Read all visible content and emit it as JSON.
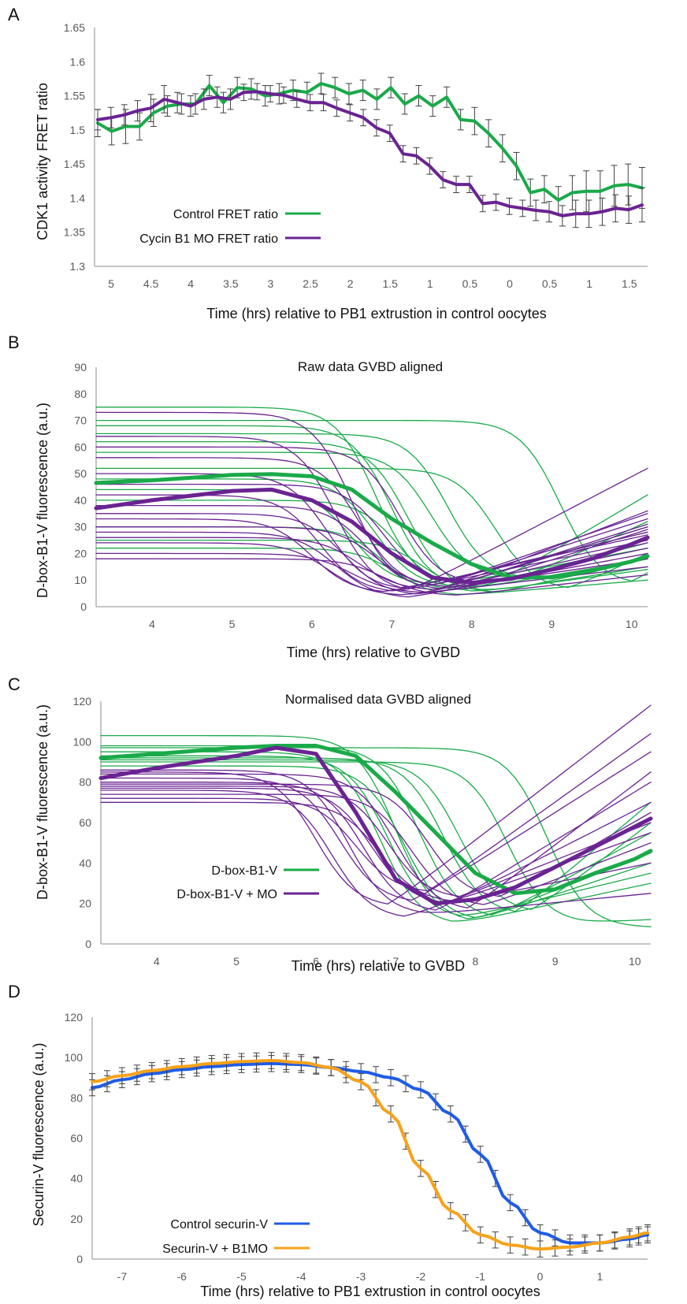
{
  "colors": {
    "green": "#1aaa49",
    "purple": "#6a2392",
    "blue": "#1f5ce6",
    "orange": "#f7a21b",
    "err": "#404040",
    "axis": "#b3b3b3"
  },
  "chart_data": [
    {
      "panel": "A",
      "type": "line",
      "title": "",
      "ylabel": "CDK1 activity  FRET ratio",
      "xlabel": "Time (hrs) relative to PB1 extrustion in control oocytes",
      "ylim": [
        1.3,
        1.65
      ],
      "yticks": [
        "1.3",
        "1.35",
        "1.4",
        "1.45",
        "1.5",
        "1.55",
        "1.6",
        "1.65"
      ],
      "xticks": [
        "5",
        "4.5",
        "4",
        "3.5",
        "3",
        "2.5",
        "2",
        "1.5",
        "1",
        "0.5",
        "0",
        "0.5",
        "1",
        "1.5"
      ],
      "series": [
        {
          "name": "Control FRET ratio",
          "color": "green",
          "values": [
            1.51,
            1.498,
            1.505,
            1.505,
            1.525,
            1.535,
            1.538,
            1.538,
            1.565,
            1.54,
            1.562,
            1.56,
            1.55,
            1.553,
            1.558,
            1.555,
            1.568,
            1.562,
            1.553,
            1.558,
            1.545,
            1.562,
            1.538,
            1.55,
            1.535,
            1.548,
            1.515,
            1.513,
            1.495,
            1.473,
            1.447,
            1.408,
            1.413,
            1.397,
            1.408,
            1.41,
            1.41,
            1.418,
            1.42,
            1.415
          ],
          "err": [
            0.02,
            0.02,
            0.025,
            0.02,
            0.02,
            0.015,
            0.015,
            0.015,
            0.015,
            0.015,
            0.015,
            0.015,
            0.015,
            0.015,
            0.015,
            0.015,
            0.015,
            0.015,
            0.015,
            0.015,
            0.015,
            0.015,
            0.015,
            0.015,
            0.015,
            0.015,
            0.015,
            0.02,
            0.02,
            0.02,
            0.02,
            0.02,
            0.02,
            0.02,
            0.025,
            0.03,
            0.03,
            0.03,
            0.03,
            0.03
          ]
        },
        {
          "name": "Cycin B1 MO FRET ratio",
          "color": "purple",
          "values": [
            1.515,
            1.518,
            1.522,
            1.528,
            1.532,
            1.545,
            1.54,
            1.535,
            1.545,
            1.548,
            1.545,
            1.555,
            1.556,
            1.553,
            1.551,
            1.545,
            1.54,
            1.54,
            1.532,
            1.525,
            1.518,
            1.503,
            1.495,
            1.465,
            1.462,
            1.447,
            1.427,
            1.42,
            1.42,
            1.392,
            1.394,
            1.388,
            1.385,
            1.382,
            1.38,
            1.374,
            1.377,
            1.377,
            1.38,
            1.385,
            1.383,
            1.39
          ],
          "err": [
            0.015,
            0.015,
            0.015,
            0.015,
            0.02,
            0.02,
            0.015,
            0.015,
            0.015,
            0.015,
            0.015,
            0.012,
            0.012,
            0.012,
            0.012,
            0.012,
            0.012,
            0.012,
            0.012,
            0.012,
            0.012,
            0.012,
            0.012,
            0.012,
            0.012,
            0.012,
            0.012,
            0.012,
            0.012,
            0.012,
            0.012,
            0.012,
            0.012,
            0.015,
            0.015,
            0.015,
            0.02,
            0.02,
            0.02,
            0.02,
            0.02,
            0.025
          ]
        }
      ],
      "legend": "bottom-left"
    },
    {
      "panel": "B",
      "type": "line",
      "title": "Raw data GVBD aligned",
      "ylabel": "D-box-B1-V fluorescence (a.u.)",
      "xlabel": "Time (hrs) relative to GVBD",
      "ylim": [
        0,
        90
      ],
      "yticks": [
        "0",
        "10",
        "20",
        "30",
        "40",
        "50",
        "60",
        "70",
        "80",
        "90"
      ],
      "xlim": [
        3.3,
        10.2
      ],
      "xticks": [
        "4",
        "5",
        "6",
        "7",
        "8",
        "9",
        "10"
      ],
      "thin_series": [
        {
          "color": "green",
          "start": 75,
          "t_drop": 6.8,
          "floor": 8,
          "end": 22
        },
        {
          "color": "green",
          "start": 68,
          "t_drop": 7.0,
          "floor": 6,
          "end": 18
        },
        {
          "color": "green",
          "start": 62,
          "t_drop": 7.2,
          "floor": 5,
          "end": 15
        },
        {
          "color": "green",
          "start": 58,
          "t_drop": 7.5,
          "floor": 10,
          "end": 42
        },
        {
          "color": "green",
          "start": 52,
          "t_drop": 8.3,
          "floor": 6,
          "end": 20
        },
        {
          "color": "green",
          "start": 48,
          "t_drop": 6.8,
          "floor": 7,
          "end": 30
        },
        {
          "color": "green",
          "start": 44,
          "t_drop": 6.5,
          "floor": 8,
          "end": 28
        },
        {
          "color": "green",
          "start": 40,
          "t_drop": 7.1,
          "floor": 5,
          "end": 14
        },
        {
          "color": "green",
          "start": 30,
          "t_drop": 6.9,
          "floor": 4,
          "end": 10
        },
        {
          "color": "green",
          "start": 25,
          "t_drop": 7.4,
          "floor": 5,
          "end": 18
        },
        {
          "color": "green",
          "start": 22,
          "t_drop": 7.0,
          "floor": 6,
          "end": 24
        },
        {
          "color": "green",
          "start": 70,
          "t_drop": 9.1,
          "floor": 8,
          "end": 12
        },
        {
          "color": "green",
          "start": 65,
          "t_drop": 7.7,
          "floor": 10,
          "end": 32
        },
        {
          "color": "purple",
          "start": 73,
          "t_drop": 6.5,
          "floor": 6,
          "end": 35
        },
        {
          "color": "purple",
          "start": 64,
          "t_drop": 6.3,
          "floor": 5,
          "end": 52
        },
        {
          "color": "purple",
          "start": 56,
          "t_drop": 6.6,
          "floor": 7,
          "end": 33
        },
        {
          "color": "purple",
          "start": 50,
          "t_drop": 6.2,
          "floor": 6,
          "end": 28
        },
        {
          "color": "purple",
          "start": 46,
          "t_drop": 6.9,
          "floor": 8,
          "end": 30
        },
        {
          "color": "purple",
          "start": 42,
          "t_drop": 6.1,
          "floor": 5,
          "end": 25
        },
        {
          "color": "purple",
          "start": 38,
          "t_drop": 6.7,
          "floor": 6,
          "end": 36
        },
        {
          "color": "purple",
          "start": 35,
          "t_drop": 6.4,
          "floor": 4,
          "end": 20
        },
        {
          "color": "purple",
          "start": 33,
          "t_drop": 6.0,
          "floor": 5,
          "end": 27
        },
        {
          "color": "purple",
          "start": 30,
          "t_drop": 6.8,
          "floor": 7,
          "end": 31
        },
        {
          "color": "purple",
          "start": 28,
          "t_drop": 6.3,
          "floor": 3,
          "end": 22
        },
        {
          "color": "purple",
          "start": 26,
          "t_drop": 6.6,
          "floor": 6,
          "end": 18
        },
        {
          "color": "purple",
          "start": 24,
          "t_drop": 6.2,
          "floor": 4,
          "end": 15
        },
        {
          "color": "purple",
          "start": 20,
          "t_drop": 6.5,
          "floor": 5,
          "end": 24
        },
        {
          "color": "purple",
          "start": 18,
          "t_drop": 6.9,
          "floor": 4,
          "end": 12
        },
        {
          "color": "purple",
          "start": 60,
          "t_drop": 7.1,
          "floor": 8,
          "end": 29
        }
      ],
      "mean_series": [
        {
          "color": "green",
          "values": [
            [
              3.3,
              46.5
            ],
            [
              4,
              47.5
            ],
            [
              5,
              49.5
            ],
            [
              5.5,
              49.8
            ],
            [
              6,
              49
            ],
            [
              6.5,
              44
            ],
            [
              7,
              33
            ],
            [
              7.5,
              24
            ],
            [
              8,
              16
            ],
            [
              8.5,
              11
            ],
            [
              9,
              11
            ],
            [
              9.5,
              13.5
            ],
            [
              10,
              17
            ],
            [
              10.2,
              19
            ]
          ]
        },
        {
          "color": "purple",
          "values": [
            [
              3.3,
              37
            ],
            [
              4,
              40
            ],
            [
              5,
              43.5
            ],
            [
              5.5,
              44
            ],
            [
              6,
              40
            ],
            [
              6.5,
              32
            ],
            [
              7,
              20
            ],
            [
              7.5,
              11
            ],
            [
              8,
              9
            ],
            [
              8.5,
              10.5
            ],
            [
              9,
              14
            ],
            [
              9.5,
              18
            ],
            [
              10,
              23.5
            ],
            [
              10.2,
              26
            ]
          ]
        }
      ]
    },
    {
      "panel": "C",
      "type": "line",
      "title": "Normalised data GVBD aligned",
      "ylabel": "D-box-B1-V fluorescence (a.u.)",
      "xlabel": "Time (hrs) relative to GVBD",
      "ylim": [
        0,
        120
      ],
      "yticks": [
        "0",
        "20",
        "40",
        "60",
        "80",
        "100",
        "120"
      ],
      "xlim": [
        3.3,
        10.2
      ],
      "xticks": [
        "4",
        "5",
        "6",
        "7",
        "8",
        "9",
        "10"
      ],
      "legend_items": [
        {
          "name": "D-box-B1-V",
          "color": "green"
        },
        {
          "name": "D-box-B1-V + MO",
          "color": "purple"
        }
      ],
      "thin_series": [
        {
          "color": "green",
          "start": 103,
          "t_drop": 7.0,
          "floor": 10,
          "end": 40
        },
        {
          "color": "green",
          "start": 98,
          "t_drop": 7.3,
          "floor": 12,
          "end": 55
        },
        {
          "color": "green",
          "start": 95,
          "t_drop": 6.8,
          "floor": 9,
          "end": 30
        },
        {
          "color": "green",
          "start": 92,
          "t_drop": 7.6,
          "floor": 14,
          "end": 70
        },
        {
          "color": "green",
          "start": 90,
          "t_drop": 8.4,
          "floor": 10,
          "end": 12
        },
        {
          "color": "green",
          "start": 88,
          "t_drop": 7.1,
          "floor": 11,
          "end": 45
        },
        {
          "color": "green",
          "start": 97,
          "t_drop": 8.9,
          "floor": 8,
          "end": 8
        },
        {
          "color": "green",
          "start": 93,
          "t_drop": 6.9,
          "floor": 12,
          "end": 35
        },
        {
          "color": "green",
          "start": 91,
          "t_drop": 7.8,
          "floor": 15,
          "end": 60
        },
        {
          "color": "purple",
          "start": 85,
          "t_drop": 6.0,
          "floor": 18,
          "end": 118
        },
        {
          "color": "purple",
          "start": 82,
          "t_drop": 6.3,
          "floor": 20,
          "end": 95
        },
        {
          "color": "purple",
          "start": 80,
          "t_drop": 6.6,
          "floor": 15,
          "end": 80
        },
        {
          "color": "purple",
          "start": 78,
          "t_drop": 6.9,
          "floor": 22,
          "end": 70
        },
        {
          "color": "purple",
          "start": 76,
          "t_drop": 6.2,
          "floor": 12,
          "end": 60
        },
        {
          "color": "purple",
          "start": 74,
          "t_drop": 7.2,
          "floor": 18,
          "end": 50
        },
        {
          "color": "purple",
          "start": 72,
          "t_drop": 6.5,
          "floor": 25,
          "end": 104
        },
        {
          "color": "purple",
          "start": 70,
          "t_drop": 6.8,
          "floor": 20,
          "end": 40
        },
        {
          "color": "purple",
          "start": 84,
          "t_drop": 7.0,
          "floor": 16,
          "end": 85
        },
        {
          "color": "purple",
          "start": 86,
          "t_drop": 6.4,
          "floor": 14,
          "end": 25
        },
        {
          "color": "purple",
          "start": 79,
          "t_drop": 7.4,
          "floor": 22,
          "end": 65
        },
        {
          "color": "purple",
          "start": 77,
          "t_drop": 6.7,
          "floor": 19,
          "end": 55
        }
      ],
      "mean_series": [
        {
          "color": "green",
          "values": [
            [
              3.3,
              92
            ],
            [
              4,
              94
            ],
            [
              5,
              97
            ],
            [
              5.5,
              98
            ],
            [
              6,
              98
            ],
            [
              6.5,
              93
            ],
            [
              7,
              75
            ],
            [
              7.5,
              55
            ],
            [
              8,
              35
            ],
            [
              8.5,
              25
            ],
            [
              9,
              27
            ],
            [
              9.5,
              35
            ],
            [
              10,
              42
            ],
            [
              10.2,
              46
            ]
          ]
        },
        {
          "color": "purple",
          "values": [
            [
              3.3,
              82
            ],
            [
              4,
              87
            ],
            [
              5,
              93
            ],
            [
              5.5,
              97
            ],
            [
              6,
              94
            ],
            [
              6.5,
              65
            ],
            [
              7,
              32
            ],
            [
              7.5,
              20
            ],
            [
              8,
              22
            ],
            [
              8.5,
              28
            ],
            [
              9,
              38
            ],
            [
              9.5,
              48
            ],
            [
              10,
              58
            ],
            [
              10.2,
              62
            ]
          ]
        }
      ]
    },
    {
      "panel": "D",
      "type": "line",
      "title": "",
      "ylabel": "Securin-V fluorescence (a.u.)",
      "xlabel": "Time (hrs) relative to PB1 extrustion in control oocytes",
      "ylim": [
        0,
        120
      ],
      "yticks": [
        "0",
        "20",
        "40",
        "60",
        "80",
        "100",
        "120"
      ],
      "xlim": [
        -7.5,
        1.8
      ],
      "xticks": [
        "-7",
        "-6",
        "-5",
        "-4",
        "-3",
        "-2",
        "-1",
        "0",
        "1"
      ],
      "series": [
        {
          "name": "Control securin-V",
          "color": "blue",
          "x": [
            -7.5,
            -7,
            -6.5,
            -6,
            -5.5,
            -5,
            -4.5,
            -4,
            -3.5,
            -3,
            -2.5,
            -2,
            -1.5,
            -1,
            -0.5,
            0,
            0.5,
            1,
            1.5,
            1.8
          ],
          "values": [
            85,
            89,
            92,
            94,
            95.5,
            96.5,
            97,
            96.5,
            95,
            93,
            90,
            84,
            72,
            52,
            28,
            13,
            8,
            8,
            10,
            12
          ]
        },
        {
          "name": "Securin-V + B1MO",
          "color": "orange",
          "x": [
            -7.5,
            -7,
            -6.5,
            -6,
            -5.5,
            -5,
            -4.5,
            -4,
            -3.5,
            -3,
            -2.5,
            -2,
            -1.5,
            -1,
            -0.5,
            0,
            0.5,
            1,
            1.5,
            1.8
          ],
          "values": [
            88,
            91,
            93.5,
            95.5,
            97,
            98,
            98.5,
            97.5,
            95,
            88,
            72,
            45,
            24,
            12,
            7,
            5,
            6,
            8,
            11,
            13
          ]
        }
      ],
      "legend": "bottom-left"
    }
  ],
  "panels": {
    "A": {
      "label": "A",
      "legend": [
        "Control FRET ratio",
        "Cycin B1 MO FRET ratio"
      ]
    },
    "B": {
      "label": "B"
    },
    "C": {
      "label": "C",
      "legend": [
        "D-box-B1-V",
        "D-box-B1-V + MO"
      ]
    },
    "D": {
      "label": "D",
      "legend": [
        "Control securin-V",
        "Securin-V + B1MO"
      ]
    }
  }
}
